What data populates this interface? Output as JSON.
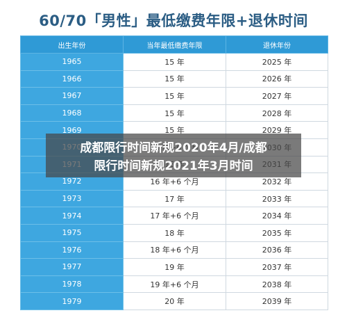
{
  "title": "60/70「男性」最低缴费年限+退休时间",
  "table": {
    "headers": [
      "出生年份",
      "当年最低缴费年限",
      "退休年份"
    ],
    "rows": [
      [
        "1965",
        "15 年",
        "2025 年"
      ],
      [
        "1966",
        "15 年",
        "2026 年"
      ],
      [
        "1967",
        "15 年",
        "2027 年"
      ],
      [
        "1968",
        "15 年",
        "2028 年"
      ],
      [
        "1969",
        "15 年",
        "2029 年"
      ],
      [
        "1970",
        "15 年+6 个月",
        "2030 年"
      ],
      [
        "1971",
        "16 年",
        "2031 年"
      ],
      [
        "1972",
        "16 年+6 个月",
        "2032 年"
      ],
      [
        "1973",
        "17 年",
        "2033 年"
      ],
      [
        "1974",
        "17 年+6 个月",
        "2034 年"
      ],
      [
        "1975",
        "18 年",
        "2035 年"
      ],
      [
        "1976",
        "18 年+6 个月",
        "2036 年"
      ],
      [
        "1977",
        "19 年",
        "2037 年"
      ],
      [
        "1978",
        "19 年+6 个月",
        "2038 年"
      ],
      [
        "1979",
        "20 年",
        "2039 年"
      ]
    ]
  },
  "overlay": {
    "line1": "成都限行时间新规2020年4月/成都",
    "line2": "限行时间新规2021年3月时间"
  },
  "colors": {
    "title": "#2b5d84",
    "header_bg": "#2f9ad6",
    "year_col_bg": "#3ea7e0",
    "border": "#cfd8e0"
  }
}
